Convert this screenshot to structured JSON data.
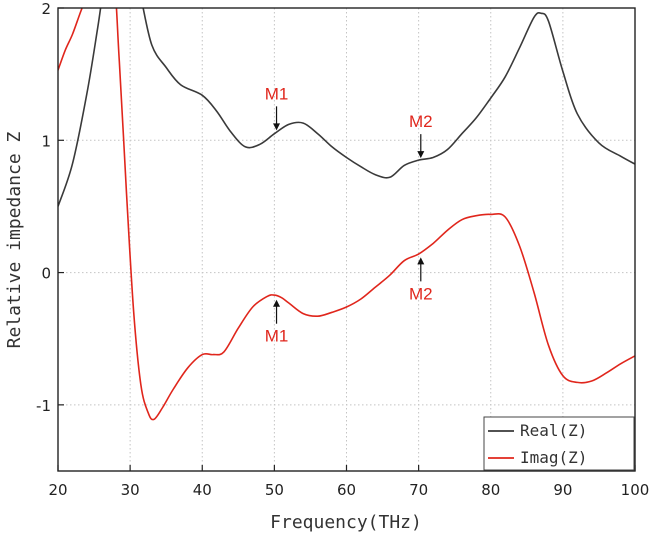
{
  "chart_data": {
    "type": "line",
    "title": "",
    "xlabel": "Frequency(THz)",
    "ylabel": "Relative impedance Z",
    "xlim": [
      20,
      100
    ],
    "ylim": [
      -1.5,
      2
    ],
    "xticks": [
      20,
      30,
      40,
      50,
      60,
      70,
      80,
      90,
      100
    ],
    "yticks": [
      -1,
      0,
      1,
      2
    ],
    "grid": "dotted vertical and horizontal",
    "legend_position": "bottom-right",
    "series": [
      {
        "name": "Real(Z)",
        "color": "#3a3a3a",
        "x": [
          20,
          22,
          24,
          25.5,
          26.5,
          27.5,
          30.5,
          31.5,
          33,
          35,
          37,
          40,
          42,
          44,
          46,
          48,
          50,
          52,
          54,
          56,
          58,
          60,
          62,
          64,
          66,
          68,
          70,
          72,
          74,
          76,
          78,
          80,
          82,
          84,
          86,
          87,
          88,
          90,
          92,
          95,
          98,
          100
        ],
        "values": [
          0.5,
          0.82,
          1.35,
          1.85,
          2.2,
          2.3,
          2.3,
          2.08,
          1.72,
          1.55,
          1.42,
          1.34,
          1.22,
          1.06,
          0.95,
          0.97,
          1.05,
          1.12,
          1.13,
          1.05,
          0.95,
          0.87,
          0.8,
          0.74,
          0.72,
          0.81,
          0.85,
          0.87,
          0.93,
          1.05,
          1.17,
          1.32,
          1.48,
          1.7,
          1.93,
          1.96,
          1.9,
          1.52,
          1.2,
          0.98,
          0.88,
          0.82
        ]
      },
      {
        "name": "Imag(Z)",
        "color": "#e0261c",
        "x": [
          20,
          21,
          22,
          23,
          24,
          25,
          27.5,
          28.5,
          29.5,
          30.5,
          31.5,
          32.5,
          33.3,
          34.5,
          36,
          38,
          40,
          41.5,
          43,
          45,
          47,
          49,
          50,
          51,
          52,
          54,
          56,
          58,
          60,
          62,
          64,
          66,
          68,
          70,
          72,
          74,
          76,
          78,
          80,
          82,
          84,
          86,
          88,
          90,
          92,
          94,
          96,
          98,
          100
        ],
        "values": [
          1.53,
          1.68,
          1.8,
          1.95,
          2.1,
          2.3,
          2.3,
          1.6,
          0.6,
          -0.3,
          -0.85,
          -1.06,
          -1.11,
          -1.02,
          -0.88,
          -0.72,
          -0.62,
          -0.62,
          -0.6,
          -0.42,
          -0.26,
          -0.18,
          -0.17,
          -0.19,
          -0.23,
          -0.31,
          -0.33,
          -0.3,
          -0.26,
          -0.2,
          -0.11,
          -0.02,
          0.09,
          0.14,
          0.22,
          0.32,
          0.4,
          0.43,
          0.44,
          0.42,
          0.2,
          -0.15,
          -0.55,
          -0.78,
          -0.83,
          -0.82,
          -0.76,
          -0.69,
          -0.63
        ]
      }
    ],
    "annotations": [
      {
        "text": "M1",
        "series": "Real(Z)",
        "x": 50.3,
        "y": 1.06,
        "placement": "above"
      },
      {
        "text": "M2",
        "series": "Real(Z)",
        "x": 70.3,
        "y": 0.85,
        "placement": "above"
      },
      {
        "text": "M1",
        "series": "Imag(Z)",
        "x": 50.3,
        "y": -0.19,
        "placement": "below"
      },
      {
        "text": "M2",
        "series": "Imag(Z)",
        "x": 70.3,
        "y": 0.13,
        "placement": "below"
      }
    ]
  }
}
